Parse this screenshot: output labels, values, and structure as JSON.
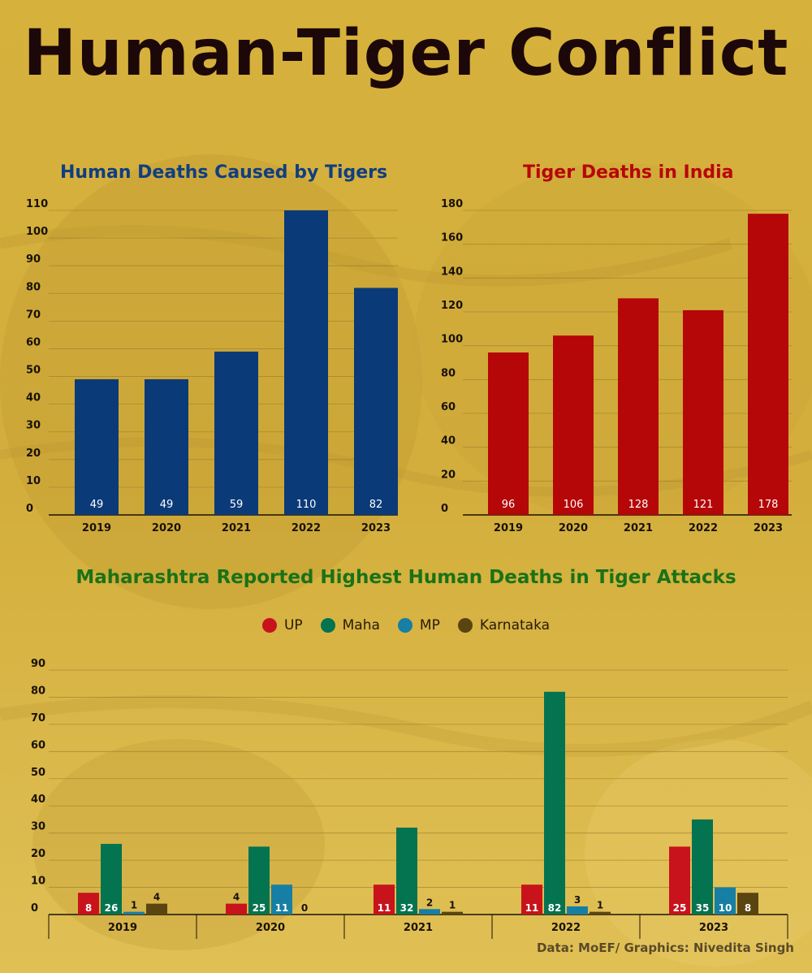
{
  "title": "Human-Tiger Conflict",
  "source": "Data: MoEF/ Graphics: Nivedita Singh",
  "colors": {
    "background": "#d9b53e",
    "human_deaths": "#0b3a78",
    "tiger_deaths": "#b50608",
    "UP": "#c8131c",
    "Maha": "#047350",
    "MP": "#167fa3",
    "Karnataka": "#5a4510"
  },
  "chart_data": [
    {
      "type": "bar",
      "title": "Human Deaths Caused by Tigers",
      "categories": [
        "2019",
        "2020",
        "2021",
        "2022",
        "2023"
      ],
      "values": [
        49,
        49,
        59,
        110,
        82
      ],
      "ylim": [
        0,
        110
      ],
      "yticks": [
        "0",
        "10",
        "20",
        "30",
        "40",
        "50",
        "60",
        "70",
        "80",
        "90",
        "100",
        "110"
      ],
      "grid": true,
      "data_labels": true
    },
    {
      "type": "bar",
      "title": "Tiger Deaths in India",
      "categories": [
        "2019",
        "2020",
        "2021",
        "2022",
        "2023"
      ],
      "values": [
        96,
        106,
        128,
        121,
        178
      ],
      "ylim": [
        0,
        180
      ],
      "yticks": [
        "0",
        "20",
        "40",
        "60",
        "80",
        "100",
        "120",
        "140",
        "160",
        "180"
      ],
      "grid": true,
      "data_labels": true
    },
    {
      "type": "bar",
      "title": "Maharashtra Reported Highest Human Deaths in Tiger Attacks",
      "categories": [
        "2019",
        "2020",
        "2021",
        "2022",
        "2023"
      ],
      "series": [
        {
          "name": "UP",
          "values": [
            8,
            4,
            11,
            11,
            25
          ]
        },
        {
          "name": "Maha",
          "values": [
            26,
            25,
            32,
            82,
            35
          ]
        },
        {
          "name": "MP",
          "values": [
            1,
            11,
            2,
            3,
            10
          ]
        },
        {
          "name": "Karnataka",
          "values": [
            4,
            0,
            1,
            1,
            8
          ]
        }
      ],
      "ylim": [
        0,
        90
      ],
      "yticks": [
        "0",
        "10",
        "20",
        "30",
        "40",
        "50",
        "60",
        "70",
        "80",
        "90"
      ],
      "legend": "top-center",
      "grid": true,
      "data_labels": true
    }
  ]
}
